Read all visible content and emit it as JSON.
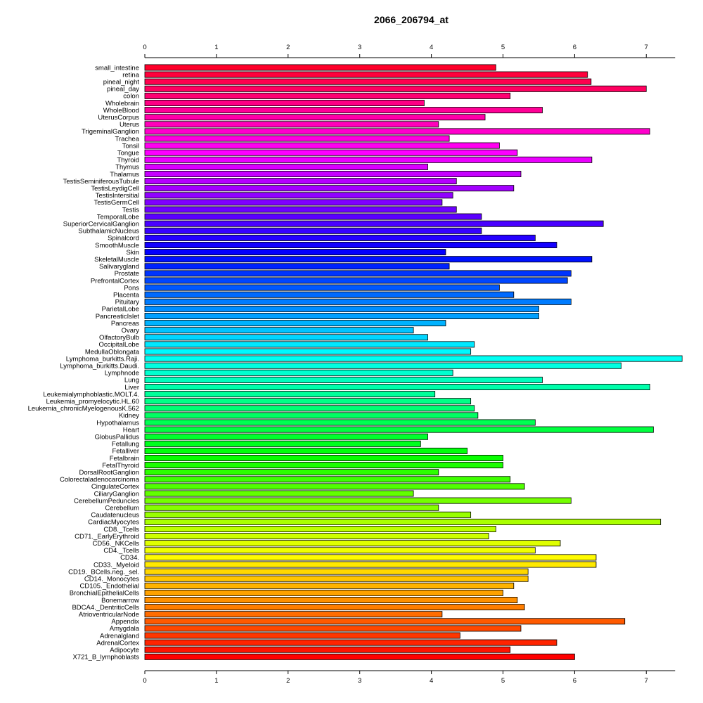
{
  "chart_data": {
    "type": "bar",
    "orientation": "horizontal",
    "title": "2066_206794_at",
    "xlabel": "",
    "ylabel": "",
    "xlim": [
      0,
      7.5
    ],
    "xticks": [
      "0",
      "1",
      "2",
      "3",
      "4",
      "5",
      "6",
      "7"
    ],
    "axes": "top and bottom",
    "grid": false,
    "legend": "none",
    "color_scheme": "rainbow (red top, through violet, blue, cyan, green, yellow to red bottom)",
    "categories": [
      "small_intestine",
      "retina",
      "pineal_night",
      "pineal_day",
      "colon",
      "Wholebrain",
      "WholeBlood",
      "UterusCorpus",
      "Uterus",
      "TrigeminalGanglion",
      "Trachea",
      "Tonsil",
      "Tongue",
      "Thyroid",
      "Thymus",
      "Thalamus",
      "TestisSeminiferousTubule",
      "TestisLeydigCell",
      "TestisIntersitial",
      "TestisGermCell",
      "Testis",
      "TemporalLobe",
      "SuperiorCervicalGanglion",
      "SubthalamicNucleus",
      "Spinalcord",
      "SmoothMuscle",
      "Skin",
      "SkeletalMuscle",
      "Salivarygland",
      "Prostate",
      "PrefrontalCortex",
      "Pons",
      "Placenta",
      "Pituitary",
      "ParietalLobe",
      "PancreaticIslet",
      "Pancreas",
      "Ovary",
      "OlfactoryBulb",
      "OccipitalLobe",
      "MedullaOblongata",
      "Lymphoma_burkitts.Raji.",
      "Lymphoma_burkitts.Daudi.",
      "Lymphnode",
      "Lung",
      "Liver",
      "Leukemialymphoblastic.MOLT.4.",
      "Leukemia_promyelocytic.HL.60",
      "Leukemia_chronicMyelogenousK.562",
      "Kidney",
      "Hypothalamus",
      "Heart",
      "GlobusPallidus",
      "Fetallung",
      "Fetalliver",
      "Fetalbrain",
      "FetalThyroid",
      "DorsalRootGanglion",
      "Colorectaladenocarcinoma",
      "CingulateCortex",
      "CiliaryGanglion",
      "CerebellumPeduncles",
      "Cerebellum",
      "Caudatenucleus",
      "CardiacMyocytes",
      "CD8._Tcells",
      "CD71._EarlyErythroid",
      "CD56._NKCells",
      "CD4._Tcells",
      "CD34.",
      "CD33._Myeloid",
      "CD19._BCells.neg._sel.",
      "CD14._Monocytes",
      "CD105._Endothelial",
      "BronchialEpithelialCells",
      "Bonemarrow",
      "BDCA4._DentriticCells",
      "AtrioventricularNode",
      "Appendix",
      "Amygdala",
      "Adrenalgland",
      "AdrenalCortex",
      "Adipocyte",
      "X721_B_lymphoblasts"
    ],
    "values": [
      4.9,
      6.18,
      6.23,
      7.0,
      5.1,
      3.9,
      5.55,
      4.75,
      4.1,
      7.05,
      4.25,
      4.95,
      5.2,
      6.24,
      3.95,
      5.25,
      4.35,
      5.15,
      4.3,
      4.15,
      4.35,
      4.7,
      6.4,
      4.7,
      5.45,
      5.75,
      4.2,
      6.24,
      4.25,
      5.95,
      5.9,
      4.95,
      5.15,
      5.95,
      5.5,
      5.5,
      4.2,
      3.75,
      3.95,
      4.6,
      4.55,
      7.5,
      6.65,
      4.3,
      5.55,
      7.05,
      4.05,
      4.55,
      4.6,
      4.65,
      5.45,
      7.1,
      3.95,
      3.85,
      4.5,
      5.0,
      5.0,
      4.1,
      5.1,
      5.3,
      3.75,
      5.95,
      4.1,
      4.55,
      7.2,
      4.9,
      4.8,
      5.8,
      5.45,
      6.3,
      6.3,
      5.35,
      5.35,
      5.15,
      5.0,
      5.2,
      5.3,
      4.15,
      6.7,
      5.25,
      4.4,
      5.75,
      5.1,
      6.0
    ]
  }
}
